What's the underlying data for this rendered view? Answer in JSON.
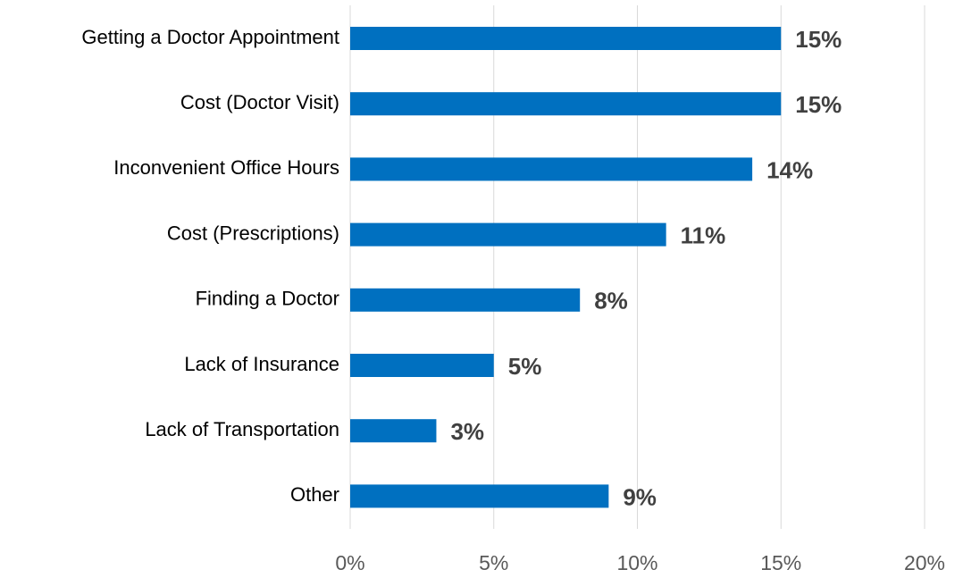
{
  "chart_data": {
    "type": "bar",
    "orientation": "horizontal",
    "categories": [
      "Getting a Doctor Appointment",
      "Cost (Doctor Visit)",
      "Inconvenient Office Hours",
      "Cost (Prescriptions)",
      "Finding a Doctor",
      "Lack of Insurance",
      "Lack of Transportation",
      "Other"
    ],
    "values": [
      15,
      15,
      14,
      11,
      8,
      5,
      3,
      9
    ],
    "value_labels": [
      "15%",
      "15%",
      "14%",
      "11%",
      "8%",
      "5%",
      "3%",
      "9%"
    ],
    "color": "#0070c0",
    "xlim": [
      0,
      20
    ],
    "xticks": [
      {
        "value": 0,
        "label": "0%"
      },
      {
        "value": 5,
        "label": "5%"
      },
      {
        "value": 10,
        "label": "10%"
      },
      {
        "value": 15,
        "label": "15%"
      },
      {
        "value": 20,
        "label": "20%"
      }
    ],
    "grid": true
  }
}
